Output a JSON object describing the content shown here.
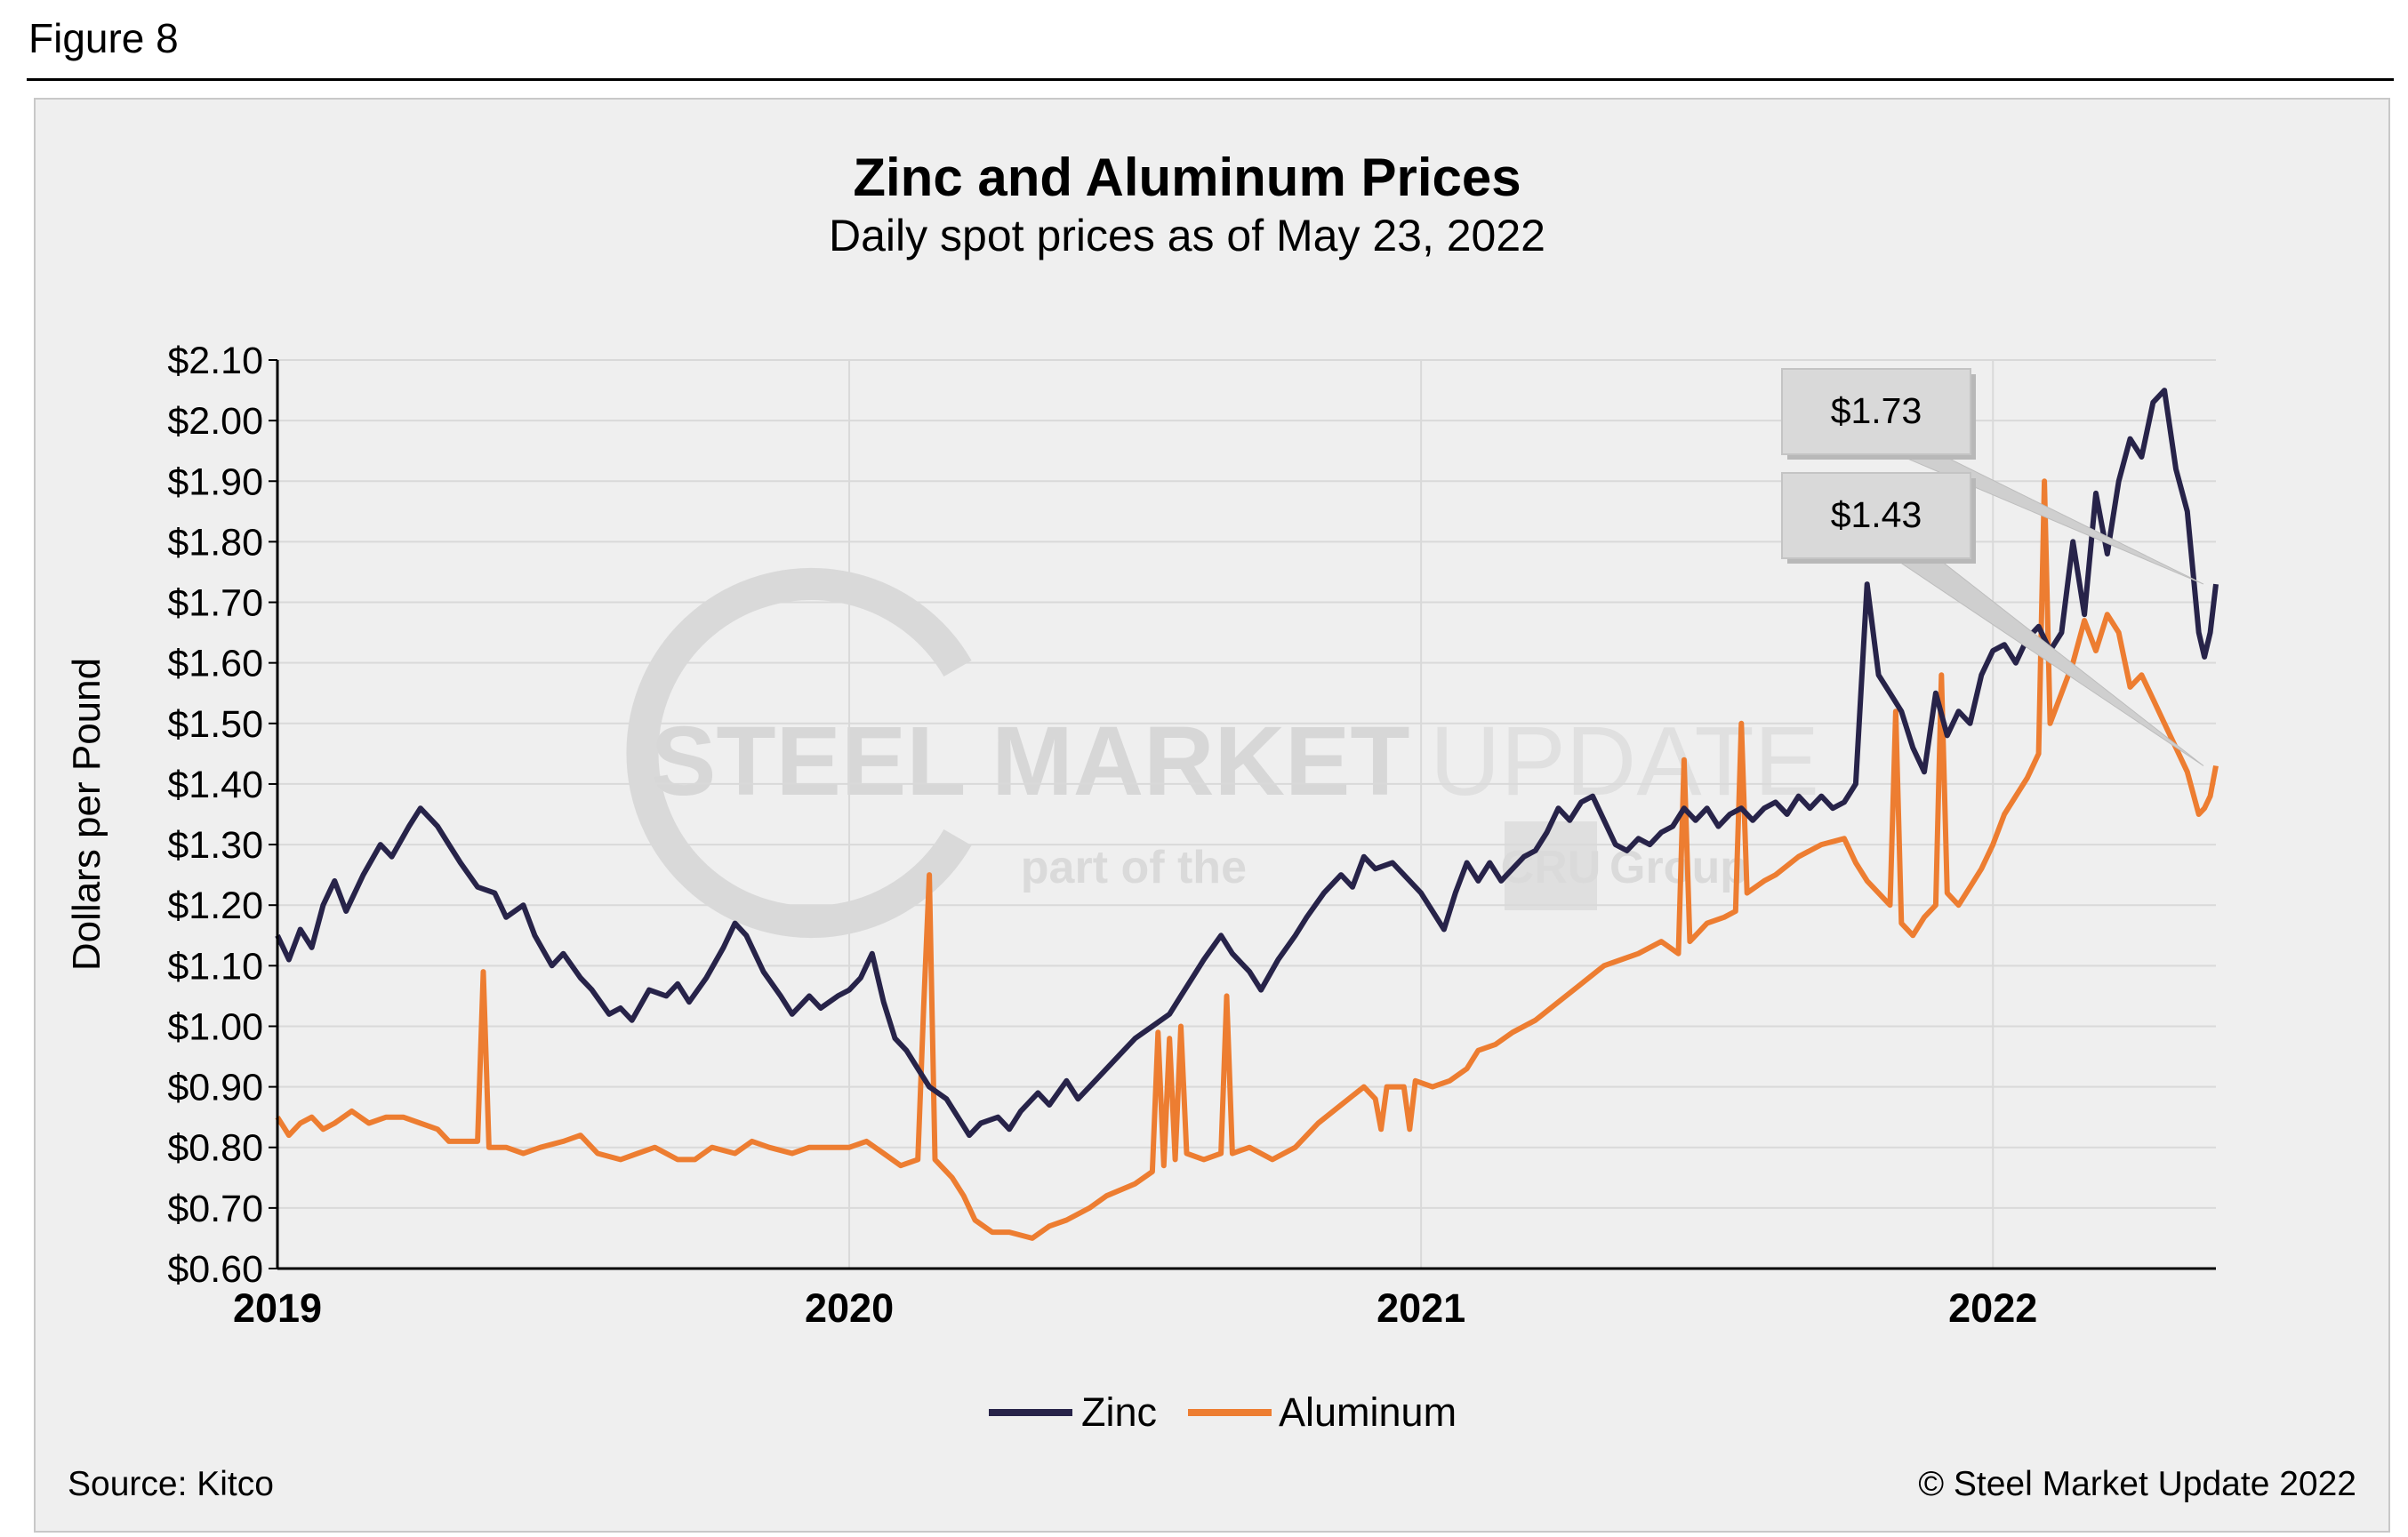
{
  "figure_label": "Figure 8",
  "watermark": {
    "bold": "STEEL MARKET",
    "light": "UPDATE",
    "tagline_a": "part of the",
    "tagline_box": "CRU",
    "tagline_b": "Group"
  },
  "source": "Source: Kitco",
  "copyright": "© Steel Market Update 2022",
  "colors": {
    "zinc": "#272349",
    "aluminum": "#ED7D31",
    "grid": "#d9d9d9",
    "panel": "#efefef"
  },
  "chart_data": {
    "type": "line",
    "title": "Zinc and Aluminum Prices",
    "subtitle": "Daily spot prices as of May 23, 2022",
    "ylabel": "Dollars per Pound",
    "xlabel": "",
    "ylim": [
      0.6,
      2.1
    ],
    "xlim": [
      2019.0,
      2022.39
    ],
    "y_ticks": [
      "$0.60",
      "$0.70",
      "$0.80",
      "$0.90",
      "$1.00",
      "$1.10",
      "$1.20",
      "$1.30",
      "$1.40",
      "$1.50",
      "$1.60",
      "$1.70",
      "$1.80",
      "$1.90",
      "$2.00",
      "$2.10"
    ],
    "x_ticks": [
      "2019",
      "2020",
      "2021",
      "2022"
    ],
    "legend": [
      "Zinc",
      "Aluminum"
    ],
    "legend_position": "bottom-center",
    "callouts": [
      {
        "label": "$1.73",
        "series": "Zinc",
        "x": 2022.39,
        "y": 1.73
      },
      {
        "label": "$1.43",
        "series": "Aluminum",
        "x": 2022.39,
        "y": 1.43
      }
    ],
    "series": [
      {
        "name": "Zinc",
        "color": "#272349",
        "points": [
          [
            2019.0,
            1.15
          ],
          [
            2019.02,
            1.11
          ],
          [
            2019.04,
            1.16
          ],
          [
            2019.06,
            1.13
          ],
          [
            2019.08,
            1.2
          ],
          [
            2019.1,
            1.24
          ],
          [
            2019.12,
            1.19
          ],
          [
            2019.15,
            1.25
          ],
          [
            2019.18,
            1.3
          ],
          [
            2019.2,
            1.28
          ],
          [
            2019.23,
            1.33
          ],
          [
            2019.25,
            1.36
          ],
          [
            2019.28,
            1.33
          ],
          [
            2019.3,
            1.3
          ],
          [
            2019.32,
            1.27
          ],
          [
            2019.35,
            1.23
          ],
          [
            2019.38,
            1.22
          ],
          [
            2019.4,
            1.18
          ],
          [
            2019.43,
            1.2
          ],
          [
            2019.45,
            1.15
          ],
          [
            2019.48,
            1.1
          ],
          [
            2019.5,
            1.12
          ],
          [
            2019.53,
            1.08
          ],
          [
            2019.55,
            1.06
          ],
          [
            2019.58,
            1.02
          ],
          [
            2019.6,
            1.03
          ],
          [
            2019.62,
            1.01
          ],
          [
            2019.65,
            1.06
          ],
          [
            2019.68,
            1.05
          ],
          [
            2019.7,
            1.07
          ],
          [
            2019.72,
            1.04
          ],
          [
            2019.75,
            1.08
          ],
          [
            2019.78,
            1.13
          ],
          [
            2019.8,
            1.17
          ],
          [
            2019.82,
            1.15
          ],
          [
            2019.85,
            1.09
          ],
          [
            2019.88,
            1.05
          ],
          [
            2019.9,
            1.02
          ],
          [
            2019.93,
            1.05
          ],
          [
            2019.95,
            1.03
          ],
          [
            2019.98,
            1.05
          ],
          [
            2020.0,
            1.06
          ],
          [
            2020.02,
            1.08
          ],
          [
            2020.04,
            1.12
          ],
          [
            2020.06,
            1.04
          ],
          [
            2020.08,
            0.98
          ],
          [
            2020.1,
            0.96
          ],
          [
            2020.12,
            0.93
          ],
          [
            2020.14,
            0.9
          ],
          [
            2020.17,
            0.88
          ],
          [
            2020.19,
            0.85
          ],
          [
            2020.21,
            0.82
          ],
          [
            2020.23,
            0.84
          ],
          [
            2020.26,
            0.85
          ],
          [
            2020.28,
            0.83
          ],
          [
            2020.3,
            0.86
          ],
          [
            2020.33,
            0.89
          ],
          [
            2020.35,
            0.87
          ],
          [
            2020.38,
            0.91
          ],
          [
            2020.4,
            0.88
          ],
          [
            2020.43,
            0.91
          ],
          [
            2020.46,
            0.94
          ],
          [
            2020.48,
            0.96
          ],
          [
            2020.5,
            0.98
          ],
          [
            2020.53,
            1.0
          ],
          [
            2020.56,
            1.02
          ],
          [
            2020.58,
            1.05
          ],
          [
            2020.6,
            1.08
          ],
          [
            2020.62,
            1.11
          ],
          [
            2020.65,
            1.15
          ],
          [
            2020.67,
            1.12
          ],
          [
            2020.7,
            1.09
          ],
          [
            2020.72,
            1.06
          ],
          [
            2020.75,
            1.11
          ],
          [
            2020.78,
            1.15
          ],
          [
            2020.8,
            1.18
          ],
          [
            2020.83,
            1.22
          ],
          [
            2020.86,
            1.25
          ],
          [
            2020.88,
            1.23
          ],
          [
            2020.9,
            1.28
          ],
          [
            2020.92,
            1.26
          ],
          [
            2020.95,
            1.27
          ],
          [
            2020.97,
            1.25
          ],
          [
            2021.0,
            1.22
          ],
          [
            2021.02,
            1.19
          ],
          [
            2021.04,
            1.16
          ],
          [
            2021.06,
            1.22
          ],
          [
            2021.08,
            1.27
          ],
          [
            2021.1,
            1.24
          ],
          [
            2021.12,
            1.27
          ],
          [
            2021.14,
            1.24
          ],
          [
            2021.16,
            1.26
          ],
          [
            2021.18,
            1.28
          ],
          [
            2021.2,
            1.29
          ],
          [
            2021.22,
            1.32
          ],
          [
            2021.24,
            1.36
          ],
          [
            2021.26,
            1.34
          ],
          [
            2021.28,
            1.37
          ],
          [
            2021.3,
            1.38
          ],
          [
            2021.32,
            1.34
          ],
          [
            2021.34,
            1.3
          ],
          [
            2021.36,
            1.29
          ],
          [
            2021.38,
            1.31
          ],
          [
            2021.4,
            1.3
          ],
          [
            2021.42,
            1.32
          ],
          [
            2021.44,
            1.33
          ],
          [
            2021.46,
            1.36
          ],
          [
            2021.48,
            1.34
          ],
          [
            2021.5,
            1.36
          ],
          [
            2021.52,
            1.33
          ],
          [
            2021.54,
            1.35
          ],
          [
            2021.56,
            1.36
          ],
          [
            2021.58,
            1.34
          ],
          [
            2021.6,
            1.36
          ],
          [
            2021.62,
            1.37
          ],
          [
            2021.64,
            1.35
          ],
          [
            2021.66,
            1.38
          ],
          [
            2021.68,
            1.36
          ],
          [
            2021.7,
            1.38
          ],
          [
            2021.72,
            1.36
          ],
          [
            2021.74,
            1.37
          ],
          [
            2021.76,
            1.4
          ],
          [
            2021.78,
            1.73
          ],
          [
            2021.8,
            1.58
          ],
          [
            2021.82,
            1.55
          ],
          [
            2021.84,
            1.52
          ],
          [
            2021.86,
            1.46
          ],
          [
            2021.88,
            1.42
          ],
          [
            2021.9,
            1.55
          ],
          [
            2021.92,
            1.48
          ],
          [
            2021.94,
            1.52
          ],
          [
            2021.96,
            1.5
          ],
          [
            2021.98,
            1.58
          ],
          [
            2022.0,
            1.62
          ],
          [
            2022.02,
            1.63
          ],
          [
            2022.04,
            1.6
          ],
          [
            2022.06,
            1.64
          ],
          [
            2022.08,
            1.66
          ],
          [
            2022.1,
            1.62
          ],
          [
            2022.12,
            1.65
          ],
          [
            2022.14,
            1.8
          ],
          [
            2022.16,
            1.68
          ],
          [
            2022.18,
            1.88
          ],
          [
            2022.2,
            1.78
          ],
          [
            2022.22,
            1.9
          ],
          [
            2022.24,
            1.97
          ],
          [
            2022.26,
            1.94
          ],
          [
            2022.28,
            2.03
          ],
          [
            2022.3,
            2.05
          ],
          [
            2022.32,
            1.92
          ],
          [
            2022.34,
            1.85
          ],
          [
            2022.36,
            1.65
          ],
          [
            2022.37,
            1.61
          ],
          [
            2022.38,
            1.65
          ],
          [
            2022.39,
            1.73
          ]
        ]
      },
      {
        "name": "Aluminum",
        "color": "#ED7D31",
        "points": [
          [
            2019.0,
            0.85
          ],
          [
            2019.02,
            0.82
          ],
          [
            2019.04,
            0.84
          ],
          [
            2019.06,
            0.85
          ],
          [
            2019.08,
            0.83
          ],
          [
            2019.1,
            0.84
          ],
          [
            2019.13,
            0.86
          ],
          [
            2019.16,
            0.84
          ],
          [
            2019.19,
            0.85
          ],
          [
            2019.22,
            0.85
          ],
          [
            2019.25,
            0.84
          ],
          [
            2019.28,
            0.83
          ],
          [
            2019.3,
            0.81
          ],
          [
            2019.35,
            0.81
          ],
          [
            2019.36,
            1.09
          ],
          [
            2019.37,
            0.8
          ],
          [
            2019.4,
            0.8
          ],
          [
            2019.43,
            0.79
          ],
          [
            2019.46,
            0.8
          ],
          [
            2019.5,
            0.81
          ],
          [
            2019.53,
            0.82
          ],
          [
            2019.56,
            0.79
          ],
          [
            2019.6,
            0.78
          ],
          [
            2019.63,
            0.79
          ],
          [
            2019.66,
            0.8
          ],
          [
            2019.7,
            0.78
          ],
          [
            2019.73,
            0.78
          ],
          [
            2019.76,
            0.8
          ],
          [
            2019.8,
            0.79
          ],
          [
            2019.83,
            0.81
          ],
          [
            2019.86,
            0.8
          ],
          [
            2019.9,
            0.79
          ],
          [
            2019.93,
            0.8
          ],
          [
            2019.96,
            0.8
          ],
          [
            2020.0,
            0.8
          ],
          [
            2020.03,
            0.81
          ],
          [
            2020.06,
            0.79
          ],
          [
            2020.09,
            0.77
          ],
          [
            2020.12,
            0.78
          ],
          [
            2020.13,
            1.03
          ],
          [
            2020.14,
            1.25
          ],
          [
            2020.15,
            0.78
          ],
          [
            2020.18,
            0.75
          ],
          [
            2020.2,
            0.72
          ],
          [
            2020.22,
            0.68
          ],
          [
            2020.25,
            0.66
          ],
          [
            2020.28,
            0.66
          ],
          [
            2020.32,
            0.65
          ],
          [
            2020.35,
            0.67
          ],
          [
            2020.38,
            0.68
          ],
          [
            2020.42,
            0.7
          ],
          [
            2020.45,
            0.72
          ],
          [
            2020.5,
            0.74
          ],
          [
            2020.53,
            0.76
          ],
          [
            2020.54,
            0.99
          ],
          [
            2020.55,
            0.77
          ],
          [
            2020.56,
            0.98
          ],
          [
            2020.57,
            0.78
          ],
          [
            2020.58,
            1.0
          ],
          [
            2020.59,
            0.79
          ],
          [
            2020.62,
            0.78
          ],
          [
            2020.65,
            0.79
          ],
          [
            2020.66,
            1.05
          ],
          [
            2020.67,
            0.79
          ],
          [
            2020.7,
            0.8
          ],
          [
            2020.74,
            0.78
          ],
          [
            2020.78,
            0.8
          ],
          [
            2020.82,
            0.84
          ],
          [
            2020.86,
            0.87
          ],
          [
            2020.9,
            0.9
          ],
          [
            2020.92,
            0.88
          ],
          [
            2020.93,
            0.83
          ],
          [
            2020.94,
            0.9
          ],
          [
            2020.97,
            0.9
          ],
          [
            2020.98,
            0.83
          ],
          [
            2020.99,
            0.91
          ],
          [
            2021.02,
            0.9
          ],
          [
            2021.05,
            0.91
          ],
          [
            2021.08,
            0.93
          ],
          [
            2021.1,
            0.96
          ],
          [
            2021.13,
            0.97
          ],
          [
            2021.16,
            0.99
          ],
          [
            2021.2,
            1.01
          ],
          [
            2021.24,
            1.04
          ],
          [
            2021.28,
            1.07
          ],
          [
            2021.32,
            1.1
          ],
          [
            2021.35,
            1.11
          ],
          [
            2021.38,
            1.12
          ],
          [
            2021.42,
            1.14
          ],
          [
            2021.45,
            1.12
          ],
          [
            2021.46,
            1.44
          ],
          [
            2021.47,
            1.14
          ],
          [
            2021.5,
            1.17
          ],
          [
            2021.53,
            1.18
          ],
          [
            2021.55,
            1.19
          ],
          [
            2021.56,
            1.5
          ],
          [
            2021.57,
            1.22
          ],
          [
            2021.6,
            1.24
          ],
          [
            2021.62,
            1.25
          ],
          [
            2021.66,
            1.28
          ],
          [
            2021.7,
            1.3
          ],
          [
            2021.74,
            1.31
          ],
          [
            2021.76,
            1.27
          ],
          [
            2021.78,
            1.24
          ],
          [
            2021.8,
            1.22
          ],
          [
            2021.82,
            1.2
          ],
          [
            2021.83,
            1.52
          ],
          [
            2021.84,
            1.17
          ],
          [
            2021.86,
            1.15
          ],
          [
            2021.88,
            1.18
          ],
          [
            2021.9,
            1.2
          ],
          [
            2021.91,
            1.58
          ],
          [
            2021.92,
            1.22
          ],
          [
            2021.94,
            1.2
          ],
          [
            2021.96,
            1.23
          ],
          [
            2021.98,
            1.26
          ],
          [
            2022.0,
            1.3
          ],
          [
            2022.02,
            1.35
          ],
          [
            2022.04,
            1.38
          ],
          [
            2022.06,
            1.41
          ],
          [
            2022.08,
            1.45
          ],
          [
            2022.09,
            1.9
          ],
          [
            2022.1,
            1.5
          ],
          [
            2022.12,
            1.55
          ],
          [
            2022.14,
            1.6
          ],
          [
            2022.16,
            1.67
          ],
          [
            2022.18,
            1.62
          ],
          [
            2022.2,
            1.68
          ],
          [
            2022.22,
            1.65
          ],
          [
            2022.24,
            1.56
          ],
          [
            2022.26,
            1.58
          ],
          [
            2022.28,
            1.54
          ],
          [
            2022.3,
            1.5
          ],
          [
            2022.32,
            1.46
          ],
          [
            2022.34,
            1.42
          ],
          [
            2022.36,
            1.35
          ],
          [
            2022.37,
            1.36
          ],
          [
            2022.38,
            1.38
          ],
          [
            2022.39,
            1.43
          ]
        ]
      }
    ]
  }
}
